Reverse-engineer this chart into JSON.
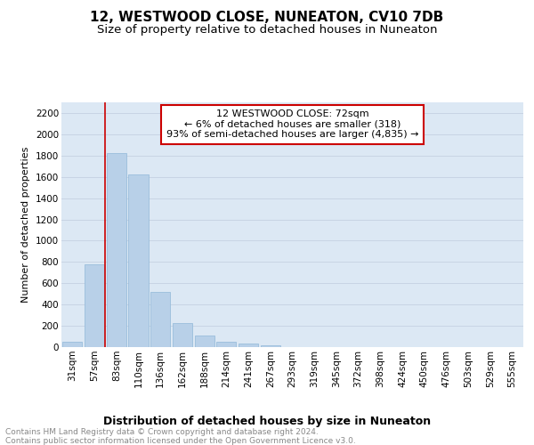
{
  "title": "12, WESTWOOD CLOSE, NUNEATON, CV10 7DB",
  "subtitle": "Size of property relative to detached houses in Nuneaton",
  "xlabel": "Distribution of detached houses by size in Nuneaton",
  "ylabel": "Number of detached properties",
  "categories": [
    "31sqm",
    "57sqm",
    "83sqm",
    "110sqm",
    "136sqm",
    "162sqm",
    "188sqm",
    "214sqm",
    "241sqm",
    "267sqm",
    "293sqm",
    "319sqm",
    "345sqm",
    "372sqm",
    "398sqm",
    "424sqm",
    "450sqm",
    "476sqm",
    "503sqm",
    "529sqm",
    "555sqm"
  ],
  "values": [
    50,
    780,
    1820,
    1620,
    520,
    230,
    105,
    50,
    30,
    20,
    0,
    0,
    0,
    0,
    0,
    0,
    0,
    0,
    0,
    0,
    0
  ],
  "bar_color": "#b8d0e8",
  "bar_edgecolor": "#90b8d8",
  "vline_x_index": 1.5,
  "vline_color": "#cc0000",
  "annotation_text": "12 WESTWOOD CLOSE: 72sqm\n← 6% of detached houses are smaller (318)\n93% of semi-detached houses are larger (4,835) →",
  "annotation_box_facecolor": "#ffffff",
  "annotation_box_edgecolor": "#cc0000",
  "ylim": [
    0,
    2300
  ],
  "yticks": [
    0,
    200,
    400,
    600,
    800,
    1000,
    1200,
    1400,
    1600,
    1800,
    2000,
    2200
  ],
  "grid_color": "#c8d4e4",
  "background_color": "#dce8f4",
  "footer_line1": "Contains HM Land Registry data © Crown copyright and database right 2024.",
  "footer_line2": "Contains public sector information licensed under the Open Government Licence v3.0.",
  "title_fontsize": 11,
  "subtitle_fontsize": 9.5,
  "xlabel_fontsize": 9,
  "ylabel_fontsize": 8,
  "tick_fontsize": 7.5,
  "annotation_fontsize": 8,
  "footer_fontsize": 6.5
}
